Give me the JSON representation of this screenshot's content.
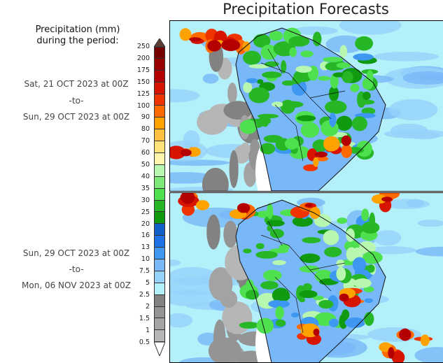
{
  "header": {
    "title": "Precipitation Forecasts"
  },
  "legend": {
    "title_line1": "Precipitation (mm)",
    "title_line2": "during the period:",
    "labels": [
      "250",
      "200",
      "175",
      "150",
      "125",
      "100",
      "90",
      "80",
      "70",
      "60",
      "50",
      "40",
      "35",
      "30",
      "25",
      "20",
      "16",
      "13",
      "10",
      "7.5",
      "5",
      "2.5",
      "2",
      "1.5",
      "1",
      "0.5"
    ],
    "colors": [
      "#760000",
      "#990000",
      "#b40000",
      "#d61400",
      "#f03400",
      "#ff6a00",
      "#ffa200",
      "#ffc040",
      "#ffe27a",
      "#fff4ae",
      "#b8f7b0",
      "#7ee87a",
      "#4fe04f",
      "#26b626",
      "#0f9a10",
      "#1460c8",
      "#1f72e6",
      "#3e98f2",
      "#78b8f8",
      "#96d2fa",
      "#b4f0fa",
      "#828282",
      "#949494",
      "#a3a3a3",
      "#b6b6b6"
    ],
    "top_arrow_color": "#5e3c34",
    "bottom_arrow_color": "#ffffff"
  },
  "periods": [
    {
      "start": "Sat, 21 OCT 2023 at 00Z",
      "sep": "-to-",
      "end": "Sun, 29 OCT 2023 at 00Z"
    },
    {
      "start": "Sun, 29 OCT 2023 at 00Z",
      "sep": "-to-",
      "end": "Mon, 06 NOV 2023 at 00Z"
    }
  ]
}
